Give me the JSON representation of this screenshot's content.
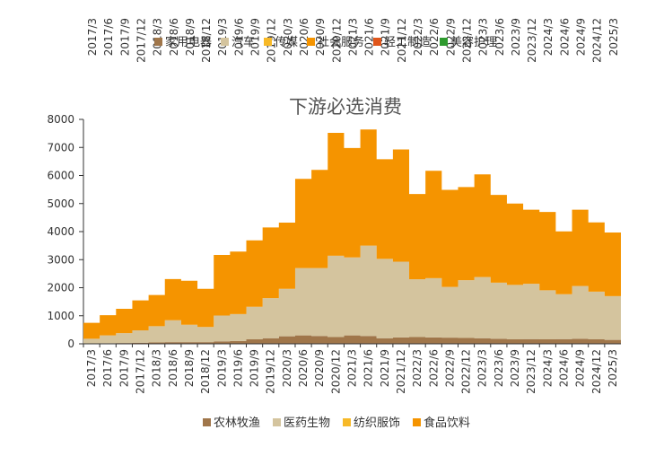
{
  "top_fragment": {
    "x_labels": [
      "2017/3",
      "2017/6",
      "2017/9",
      "2017/12",
      "2018/3",
      "2018/6",
      "2018/9",
      "2018/12",
      "2019/3",
      "2019/6",
      "2019/9",
      "2019/12",
      "2020/3",
      "2020/6",
      "2020/9",
      "2020/12",
      "2021/3",
      "2021/6",
      "2021/9",
      "2021/12",
      "2022/3",
      "2022/6",
      "2022/9",
      "2022/12",
      "2023/3",
      "2023/6",
      "2023/9",
      "2023/12",
      "2024/3",
      "2024/6",
      "2024/9",
      "2024/12",
      "2025/3"
    ],
    "legend": [
      {
        "name": "家用电器",
        "color": "#a0764a"
      },
      {
        "name": "汽车",
        "color": "#d4c49e"
      },
      {
        "name": "传媒",
        "color": "#f7b928"
      },
      {
        "name": "社会服务",
        "color": "#f59400"
      },
      {
        "name": "轻工制造",
        "color": "#e0561b"
      },
      {
        "name": "美容护理",
        "color": "#2e9a2e"
      }
    ]
  },
  "chart_data": {
    "type": "area",
    "stacked": true,
    "title": "下游必选消费",
    "ylim": [
      0,
      8000
    ],
    "yticks": [
      0,
      1000,
      2000,
      3000,
      4000,
      5000,
      6000,
      7000,
      8000
    ],
    "categories": [
      "2017/3",
      "2017/6",
      "2017/9",
      "2017/12",
      "2018/3",
      "2018/6",
      "2018/9",
      "2018/12",
      "2019/3",
      "2019/6",
      "2019/9",
      "2019/12",
      "2020/3",
      "2020/6",
      "2020/9",
      "2020/12",
      "2021/3",
      "2021/6",
      "2021/9",
      "2021/12",
      "2022/3",
      "2022/6",
      "2022/9",
      "2022/12",
      "2023/3",
      "2023/6",
      "2023/9",
      "2023/12",
      "2024/3",
      "2024/6",
      "2024/9",
      "2024/12",
      "2025/3"
    ],
    "series": [
      {
        "name": "农林牧渔",
        "color": "#a0764a",
        "values": [
          10,
          20,
          30,
          40,
          50,
          60,
          60,
          60,
          90,
          100,
          160,
          200,
          270,
          300,
          280,
          240,
          300,
          280,
          200,
          230,
          240,
          230,
          220,
          210,
          200,
          180,
          160,
          170,
          160,
          170,
          180,
          160,
          140
        ]
      },
      {
        "name": "医药生物",
        "color": "#d4c49e",
        "values": [
          170,
          280,
          350,
          440,
          580,
          780,
          620,
          540,
          920,
          960,
          1160,
          1430,
          1690,
          2400,
          2420,
          2900,
          2780,
          3220,
          2830,
          2700,
          2060,
          2110,
          1810,
          2060,
          2180,
          2000,
          1940,
          1970,
          1750,
          1600,
          1880,
          1700,
          1560
        ]
      },
      {
        "name": "纺织服饰",
        "color": "#f7b928",
        "values": [
          0,
          0,
          0,
          0,
          0,
          0,
          0,
          0,
          0,
          0,
          0,
          0,
          0,
          0,
          0,
          0,
          0,
          0,
          0,
          0,
          0,
          0,
          0,
          0,
          0,
          0,
          0,
          0,
          0,
          0,
          0,
          0,
          0
        ]
      },
      {
        "name": "食品饮料",
        "color": "#f59400",
        "values": [
          570,
          720,
          870,
          1070,
          1110,
          1470,
          1570,
          1360,
          2160,
          2230,
          2370,
          2520,
          2360,
          3180,
          3500,
          4380,
          3900,
          4140,
          3550,
          4000,
          3040,
          3830,
          3460,
          3320,
          3660,
          3130,
          2900,
          2640,
          2790,
          2240,
          2720,
          2470,
          2270
        ]
      }
    ]
  }
}
